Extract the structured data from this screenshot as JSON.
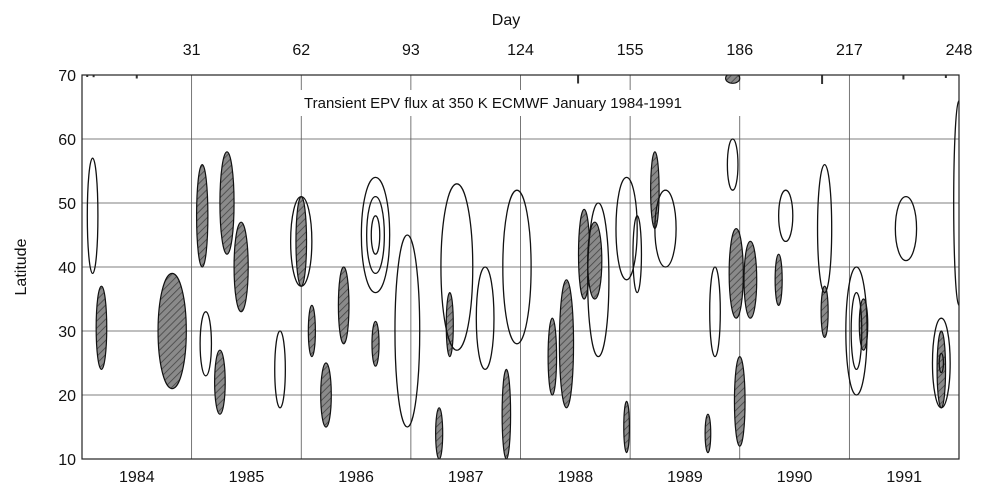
{
  "chart_data": {
    "type": "contour",
    "title": "Transient EPV flux at 350 K ECMWF January 1984-1991",
    "ylabel": "Latitude",
    "top_axis_label": "Day",
    "ylim": [
      10,
      70
    ],
    "yticks": [
      10,
      20,
      30,
      40,
      50,
      60,
      70
    ],
    "xlim": [
      0,
      248
    ],
    "top_ticks": [
      31,
      62,
      93,
      124,
      155,
      186,
      217,
      248
    ],
    "bottom_ticks": [
      {
        "label": "1984",
        "day": 15.5
      },
      {
        "label": "1985",
        "day": 46.5
      },
      {
        "label": "1986",
        "day": 77.5
      },
      {
        "label": "1987",
        "day": 108.5
      },
      {
        "label": "1988",
        "day": 139.5
      },
      {
        "label": "1989",
        "day": 170.5
      },
      {
        "label": "1990",
        "day": 201.5
      },
      {
        "label": "1991",
        "day": 232.5
      }
    ],
    "grid": true,
    "contour_styles": {
      "positive": "open line",
      "negative": "hatched fill"
    },
    "colors": {
      "line": "#111111",
      "hatch": "#7a7a7a",
      "grid": "#555555"
    },
    "features": [
      {
        "kind": "hatched",
        "day": 5.5,
        "lat": 30.5,
        "dday": 1.5,
        "dlat": 6.5
      },
      {
        "kind": "hatched",
        "day": 25.5,
        "lat": 30,
        "dday": 4,
        "dlat": 9
      },
      {
        "kind": "hatched",
        "day": 34,
        "lat": 48,
        "dday": 1.6,
        "dlat": 8
      },
      {
        "kind": "hatched",
        "day": 41,
        "lat": 50,
        "dday": 2,
        "dlat": 8
      },
      {
        "kind": "hatched",
        "day": 45,
        "lat": 40,
        "dday": 2,
        "dlat": 7
      },
      {
        "kind": "hatched",
        "day": 39,
        "lat": 22,
        "dday": 1.5,
        "dlat": 5
      },
      {
        "kind": "hatched",
        "day": 62,
        "lat": 44,
        "dday": 1.5,
        "dlat": 7
      },
      {
        "kind": "hatched",
        "day": 65,
        "lat": 30,
        "dday": 1,
        "dlat": 4
      },
      {
        "kind": "hatched",
        "day": 69,
        "lat": 20,
        "dday": 1.5,
        "dlat": 5
      },
      {
        "kind": "hatched",
        "day": 74,
        "lat": 34,
        "dday": 1.5,
        "dlat": 6
      },
      {
        "kind": "hatched",
        "day": 83,
        "lat": 28,
        "dday": 1,
        "dlat": 3.5
      },
      {
        "kind": "hatched",
        "day": 104,
        "lat": 31,
        "dday": 1,
        "dlat": 5
      },
      {
        "kind": "hatched",
        "day": 101,
        "lat": 14,
        "dday": 1,
        "dlat": 4
      },
      {
        "kind": "hatched",
        "day": 120,
        "lat": 17,
        "dday": 1.2,
        "dlat": 7
      },
      {
        "kind": "hatched",
        "day": 133,
        "lat": 26,
        "dday": 1.2,
        "dlat": 6
      },
      {
        "kind": "hatched",
        "day": 137,
        "lat": 28,
        "dday": 2,
        "dlat": 10
      },
      {
        "kind": "hatched",
        "day": 142,
        "lat": 42,
        "dday": 1.6,
        "dlat": 7
      },
      {
        "kind": "hatched",
        "day": 145,
        "lat": 41,
        "dday": 2,
        "dlat": 6
      },
      {
        "kind": "hatched",
        "day": 162,
        "lat": 52,
        "dday": 1.2,
        "dlat": 6
      },
      {
        "kind": "hatched",
        "day": 154,
        "lat": 15,
        "dday": 0.8,
        "dlat": 4
      },
      {
        "kind": "hatched",
        "day": 177,
        "lat": 14,
        "dday": 0.8,
        "dlat": 3
      },
      {
        "kind": "hatched",
        "day": 185,
        "lat": 39,
        "dday": 2,
        "dlat": 7
      },
      {
        "kind": "hatched",
        "day": 189,
        "lat": 38,
        "dday": 1.8,
        "dlat": 6
      },
      {
        "kind": "hatched",
        "day": 186,
        "lat": 19,
        "dday": 1.5,
        "dlat": 7
      },
      {
        "kind": "hatched",
        "day": 197,
        "lat": 38,
        "dday": 1,
        "dlat": 4
      },
      {
        "kind": "hatched",
        "day": 210,
        "lat": 33,
        "dday": 1,
        "dlat": 4
      },
      {
        "kind": "hatched",
        "day": 221,
        "lat": 31,
        "dday": 1.2,
        "dlat": 4
      },
      {
        "kind": "hatched",
        "day": 243,
        "lat": 24,
        "dday": 1.2,
        "dlat": 6
      },
      {
        "kind": "hatched",
        "day": 184,
        "lat": 69.5,
        "dday": 2,
        "dlat": 0.8
      },
      {
        "kind": "line",
        "day": 3,
        "lat": 48,
        "dday": 1.5,
        "dlat": 9
      },
      {
        "kind": "line",
        "day": 35,
        "lat": 28,
        "dday": 1.6,
        "dlat": 5
      },
      {
        "kind": "line",
        "day": 56,
        "lat": 24,
        "dday": 1.5,
        "dlat": 6
      },
      {
        "kind": "line",
        "day": 62,
        "lat": 44,
        "dday": 3,
        "dlat": 7
      },
      {
        "kind": "line",
        "day": 83,
        "lat": 45,
        "dday": 4,
        "dlat": 9
      },
      {
        "kind": "line",
        "day": 83,
        "lat": 45,
        "dday": 2.5,
        "dlat": 6
      },
      {
        "kind": "line",
        "day": 83,
        "lat": 45,
        "dday": 1.2,
        "dlat": 3
      },
      {
        "kind": "line",
        "day": 92,
        "lat": 30,
        "dday": 3.5,
        "dlat": 15
      },
      {
        "kind": "line",
        "day": 106,
        "lat": 40,
        "dday": 4.5,
        "dlat": 13
      },
      {
        "kind": "line",
        "day": 114,
        "lat": 32,
        "dday": 2.5,
        "dlat": 8
      },
      {
        "kind": "line",
        "day": 123,
        "lat": 40,
        "dday": 4,
        "dlat": 12
      },
      {
        "kind": "line",
        "day": 146,
        "lat": 38,
        "dday": 3,
        "dlat": 12
      },
      {
        "kind": "line",
        "day": 154,
        "lat": 46,
        "dday": 3,
        "dlat": 8
      },
      {
        "kind": "line",
        "day": 157,
        "lat": 42,
        "dday": 1.2,
        "dlat": 6
      },
      {
        "kind": "line",
        "day": 165,
        "lat": 46,
        "dday": 3,
        "dlat": 6
      },
      {
        "kind": "line",
        "day": 179,
        "lat": 33,
        "dday": 1.5,
        "dlat": 7
      },
      {
        "kind": "line",
        "day": 184,
        "lat": 56,
        "dday": 1.5,
        "dlat": 4
      },
      {
        "kind": "line",
        "day": 199,
        "lat": 48,
        "dday": 2,
        "dlat": 4
      },
      {
        "kind": "line",
        "day": 210,
        "lat": 46,
        "dday": 2,
        "dlat": 10
      },
      {
        "kind": "line",
        "day": 219,
        "lat": 30,
        "dday": 3,
        "dlat": 10
      },
      {
        "kind": "line",
        "day": 219,
        "lat": 30,
        "dday": 1.5,
        "dlat": 6
      },
      {
        "kind": "line",
        "day": 233,
        "lat": 46,
        "dday": 3,
        "dlat": 5
      },
      {
        "kind": "line",
        "day": 243,
        "lat": 25,
        "dday": 2.5,
        "dlat": 7
      },
      {
        "kind": "line",
        "day": 243,
        "lat": 25,
        "dday": 0.6,
        "dlat": 1.5
      },
      {
        "kind": "line",
        "day": 248,
        "lat": 50,
        "dday": 1.5,
        "dlat": 16
      }
    ]
  }
}
